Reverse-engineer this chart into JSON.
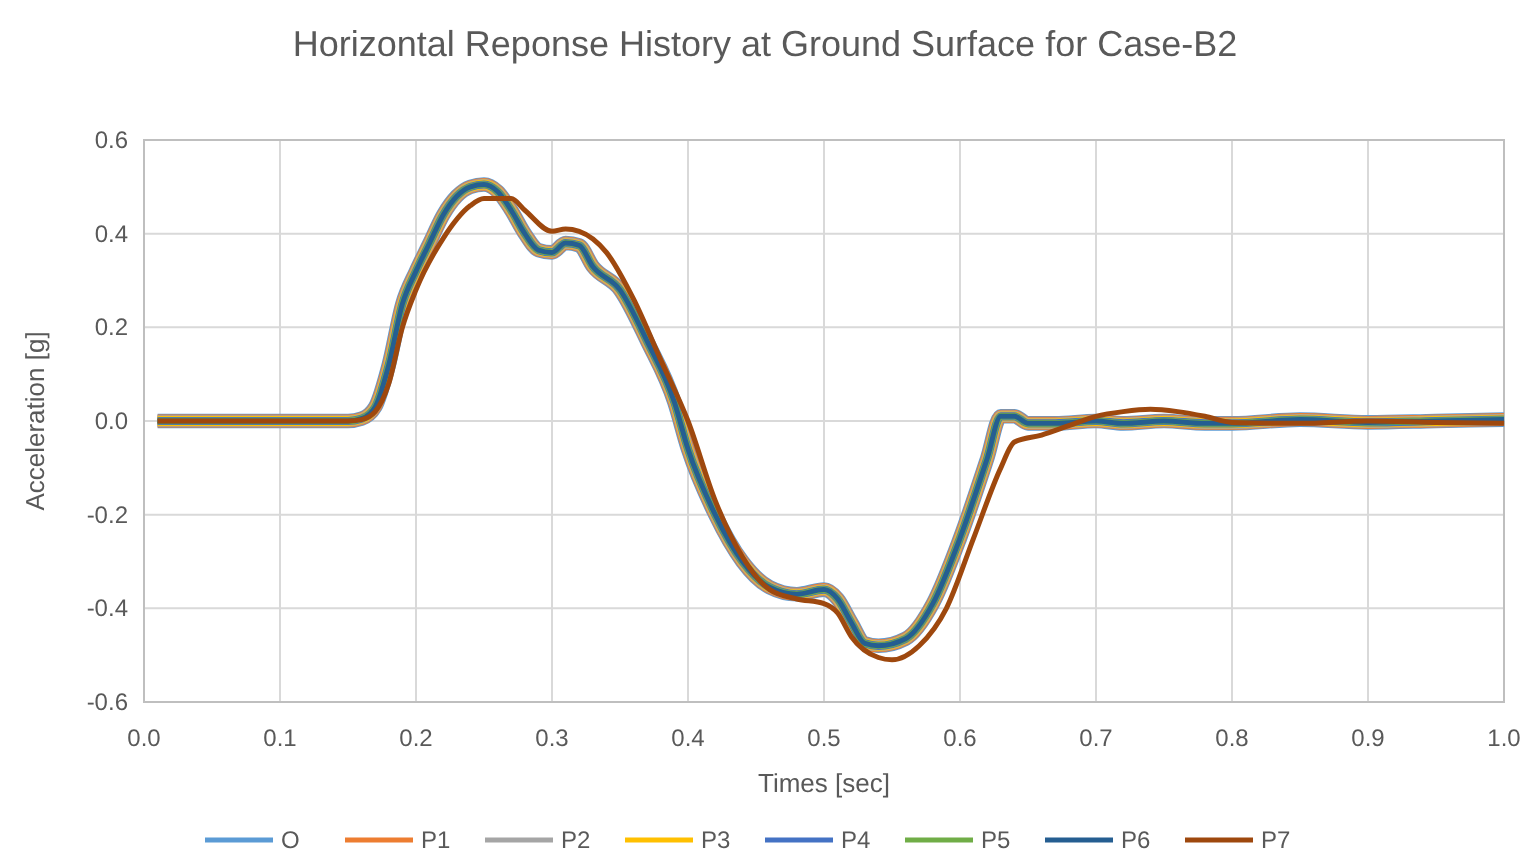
{
  "chart_data": {
    "type": "line",
    "title": "Horizontal Reponse History at Ground Surface for Case-B2",
    "xlabel": "Times [sec]",
    "ylabel": "Acceleration [g]",
    "x": [
      0.01,
      0.15,
      0.16,
      0.17,
      0.18,
      0.19,
      0.2,
      0.21,
      0.22,
      0.23,
      0.24,
      0.25,
      0.26,
      0.27,
      0.28,
      0.29,
      0.3,
      0.31,
      0.32,
      0.33,
      0.35,
      0.37,
      0.39,
      0.4,
      0.42,
      0.44,
      0.46,
      0.48,
      0.5,
      0.51,
      0.52,
      0.53,
      0.54,
      0.56,
      0.58,
      0.6,
      0.62,
      0.63,
      0.64,
      0.65,
      0.67,
      0.7,
      0.72,
      0.75,
      0.78,
      0.8,
      0.85,
      0.9,
      0.95,
      1.0
    ],
    "series": [
      {
        "name": "O",
        "color": "#5b9bd5",
        "values": [
          0,
          0,
          0.005,
          0.03,
          0.12,
          0.25,
          0.32,
          0.38,
          0.44,
          0.48,
          0.5,
          0.505,
          0.49,
          0.45,
          0.4,
          0.365,
          0.36,
          0.38,
          0.375,
          0.33,
          0.28,
          0.17,
          0.04,
          -0.06,
          -0.2,
          -0.3,
          -0.355,
          -0.37,
          -0.36,
          -0.38,
          -0.43,
          -0.475,
          -0.48,
          -0.465,
          -0.39,
          -0.25,
          -0.08,
          0.01,
          0.01,
          -0.005,
          -0.005,
          0,
          -0.005,
          0,
          -0.005,
          -0.005,
          0.003,
          -0.003,
          0,
          0.003
        ]
      },
      {
        "name": "P1",
        "color": "#ed7d31",
        "values": [
          0,
          0,
          0.005,
          0.03,
          0.12,
          0.25,
          0.32,
          0.38,
          0.44,
          0.48,
          0.5,
          0.505,
          0.49,
          0.45,
          0.4,
          0.365,
          0.36,
          0.38,
          0.375,
          0.33,
          0.28,
          0.17,
          0.04,
          -0.06,
          -0.2,
          -0.3,
          -0.355,
          -0.37,
          -0.36,
          -0.38,
          -0.43,
          -0.475,
          -0.48,
          -0.465,
          -0.39,
          -0.25,
          -0.08,
          0.01,
          0.01,
          -0.005,
          -0.005,
          0,
          -0.005,
          0,
          -0.005,
          -0.005,
          0.003,
          -0.003,
          0,
          0.003
        ]
      },
      {
        "name": "P2",
        "color": "#a5a5a5",
        "values": [
          0,
          0,
          0.005,
          0.03,
          0.12,
          0.25,
          0.32,
          0.38,
          0.44,
          0.48,
          0.5,
          0.505,
          0.49,
          0.45,
          0.4,
          0.365,
          0.36,
          0.38,
          0.375,
          0.33,
          0.28,
          0.17,
          0.04,
          -0.06,
          -0.2,
          -0.3,
          -0.355,
          -0.37,
          -0.36,
          -0.38,
          -0.43,
          -0.475,
          -0.48,
          -0.465,
          -0.39,
          -0.25,
          -0.08,
          0.01,
          0.01,
          -0.005,
          -0.005,
          0,
          -0.005,
          0,
          -0.005,
          -0.005,
          0.003,
          -0.003,
          0,
          0.003
        ]
      },
      {
        "name": "P3",
        "color": "#ffc000",
        "values": [
          0,
          0,
          0.005,
          0.03,
          0.12,
          0.25,
          0.32,
          0.38,
          0.44,
          0.48,
          0.5,
          0.505,
          0.49,
          0.45,
          0.4,
          0.365,
          0.36,
          0.38,
          0.375,
          0.33,
          0.28,
          0.17,
          0.04,
          -0.06,
          -0.2,
          -0.3,
          -0.355,
          -0.37,
          -0.36,
          -0.38,
          -0.43,
          -0.475,
          -0.48,
          -0.465,
          -0.39,
          -0.25,
          -0.08,
          0.01,
          0.01,
          -0.005,
          -0.005,
          0,
          -0.005,
          0,
          -0.005,
          -0.005,
          0.003,
          -0.003,
          0,
          0.003
        ]
      },
      {
        "name": "P4",
        "color": "#4472c4",
        "values": [
          0,
          0,
          0.005,
          0.03,
          0.12,
          0.25,
          0.32,
          0.38,
          0.44,
          0.48,
          0.5,
          0.505,
          0.49,
          0.45,
          0.4,
          0.365,
          0.36,
          0.38,
          0.375,
          0.33,
          0.28,
          0.17,
          0.04,
          -0.06,
          -0.2,
          -0.3,
          -0.355,
          -0.37,
          -0.36,
          -0.38,
          -0.43,
          -0.475,
          -0.48,
          -0.465,
          -0.39,
          -0.25,
          -0.08,
          0.01,
          0.01,
          -0.005,
          -0.005,
          0,
          -0.005,
          0,
          -0.005,
          -0.005,
          0.003,
          -0.003,
          0,
          0.003
        ]
      },
      {
        "name": "P5",
        "color": "#70ad47",
        "values": [
          0,
          0,
          0.005,
          0.03,
          0.12,
          0.25,
          0.32,
          0.38,
          0.44,
          0.48,
          0.5,
          0.505,
          0.49,
          0.45,
          0.4,
          0.365,
          0.36,
          0.38,
          0.375,
          0.33,
          0.28,
          0.17,
          0.04,
          -0.06,
          -0.2,
          -0.3,
          -0.355,
          -0.37,
          -0.36,
          -0.38,
          -0.43,
          -0.475,
          -0.48,
          -0.465,
          -0.39,
          -0.25,
          -0.08,
          0.01,
          0.01,
          -0.005,
          -0.005,
          0,
          -0.005,
          0,
          -0.005,
          -0.005,
          0.003,
          -0.003,
          0,
          0.003
        ]
      },
      {
        "name": "P6",
        "color": "#255e91",
        "values": [
          0,
          0,
          0.005,
          0.03,
          0.12,
          0.25,
          0.32,
          0.38,
          0.44,
          0.48,
          0.5,
          0.505,
          0.49,
          0.45,
          0.4,
          0.365,
          0.36,
          0.38,
          0.375,
          0.33,
          0.28,
          0.17,
          0.04,
          -0.06,
          -0.2,
          -0.3,
          -0.355,
          -0.37,
          -0.36,
          -0.38,
          -0.43,
          -0.475,
          -0.48,
          -0.465,
          -0.39,
          -0.25,
          -0.08,
          0.01,
          0.01,
          -0.005,
          -0.005,
          0,
          -0.005,
          0,
          -0.005,
          -0.005,
          0.003,
          -0.003,
          0,
          0.003
        ]
      },
      {
        "name": "P7",
        "color": "#9e480e",
        "x": [
          0.01,
          0.15,
          0.16,
          0.17,
          0.18,
          0.19,
          0.2,
          0.22,
          0.24,
          0.25,
          0.27,
          0.28,
          0.3,
          0.31,
          0.32,
          0.34,
          0.36,
          0.38,
          0.4,
          0.42,
          0.44,
          0.46,
          0.48,
          0.5,
          0.51,
          0.52,
          0.54,
          0.55,
          0.57,
          0.59,
          0.61,
          0.63,
          0.64,
          0.66,
          0.68,
          0.7,
          0.72,
          0.74,
          0.76,
          0.78,
          0.8,
          0.85,
          0.9,
          0.95,
          1.0
        ],
        "values": [
          0,
          0,
          0.003,
          0.02,
          0.08,
          0.2,
          0.28,
          0.39,
          0.46,
          0.475,
          0.475,
          0.45,
          0.405,
          0.41,
          0.405,
          0.36,
          0.26,
          0.13,
          0,
          -0.17,
          -0.29,
          -0.36,
          -0.38,
          -0.39,
          -0.41,
          -0.46,
          -0.505,
          -0.51,
          -0.48,
          -0.4,
          -0.25,
          -0.1,
          -0.045,
          -0.03,
          -0.01,
          0.01,
          0.02,
          0.025,
          0.02,
          0.01,
          -0.003,
          -0.005,
          0,
          -0.003,
          -0.005
        ]
      }
    ],
    "xlim": [
      0,
      1
    ],
    "xticks": [
      {
        "value": 0,
        "label": "0.0"
      },
      {
        "value": 0.1,
        "label": "0.1"
      },
      {
        "value": 0.2,
        "label": "0.2"
      },
      {
        "value": 0.3,
        "label": "0.3"
      },
      {
        "value": 0.4,
        "label": "0.4"
      },
      {
        "value": 0.5,
        "label": "0.5"
      },
      {
        "value": 0.6,
        "label": "0.6"
      },
      {
        "value": 0.7,
        "label": "0.7"
      },
      {
        "value": 0.8,
        "label": "0.8"
      },
      {
        "value": 0.9,
        "label": "0.9"
      },
      {
        "value": 1,
        "label": "1.0"
      }
    ],
    "ylim": [
      -0.6,
      0.6
    ],
    "yticks": [
      {
        "value": -0.6,
        "label": "-0.6"
      },
      {
        "value": -0.4,
        "label": "-0.4"
      },
      {
        "value": -0.2,
        "label": "-0.2"
      },
      {
        "value": 0,
        "label": "0.0"
      },
      {
        "value": 0.2,
        "label": "0.2"
      },
      {
        "value": 0.4,
        "label": "0.4"
      },
      {
        "value": 0.6,
        "label": "0.6"
      }
    ],
    "grid": true,
    "legend": "bottom",
    "marker": "none",
    "line_style": "solid"
  }
}
